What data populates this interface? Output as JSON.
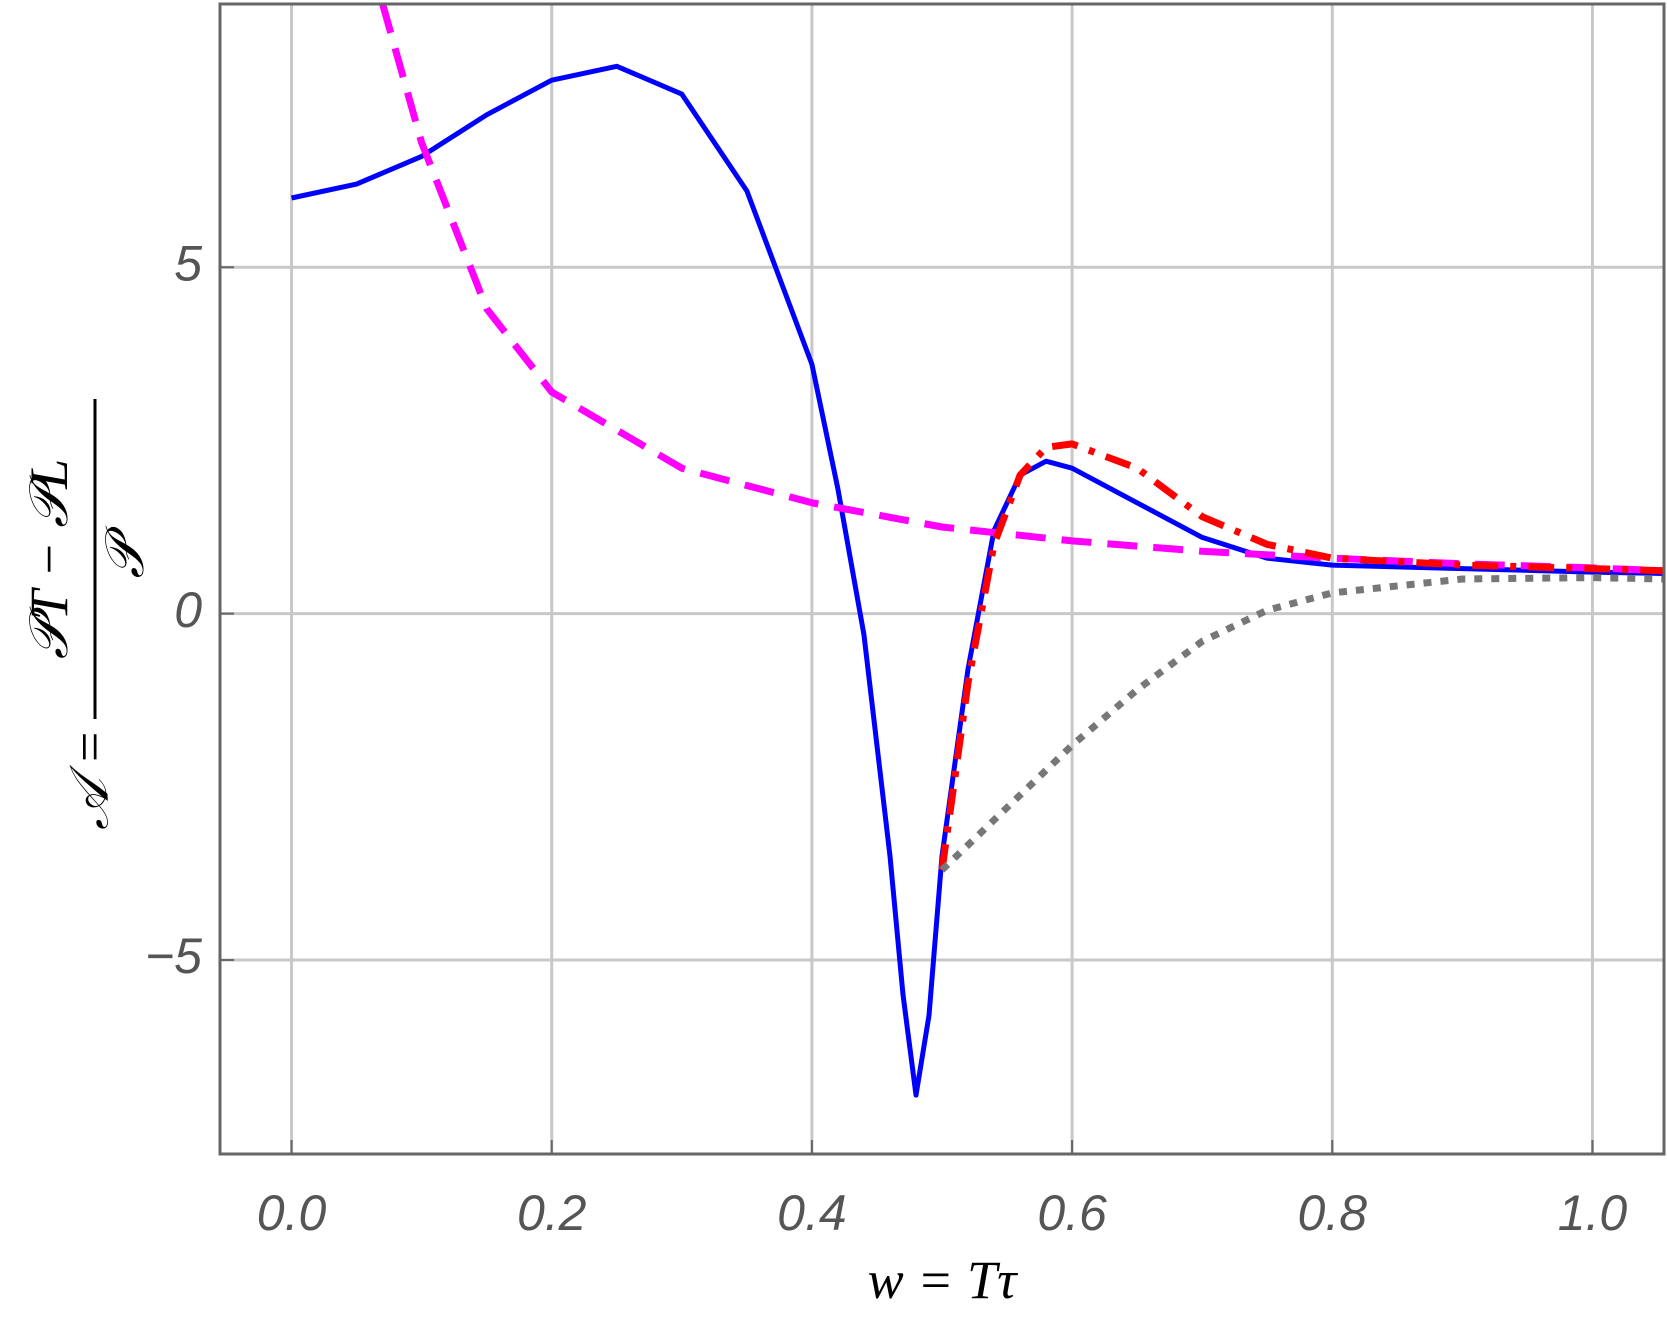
{
  "chart_data": {
    "type": "line",
    "xlabel": "w = Tτ",
    "ylabel_left": "𝒜 =",
    "ylabel_numerator": "𝒫T − 𝒫L",
    "ylabel_denominator": "𝒫",
    "xlim": [
      -0.055,
      1.055
    ],
    "ylim": [
      -7.8,
      8.8
    ],
    "xticks": [
      {
        "value": 0,
        "label": "0.0"
      },
      0.2,
      0.4,
      0.6,
      0.8,
      {
        "value": 1,
        "label": "1.0"
      }
    ],
    "yticks": [
      {
        "value": -5,
        "label": "−5"
      },
      0,
      5
    ],
    "grid": true,
    "series": [
      {
        "color": "#0000ff",
        "style": "solid",
        "x": [
          0,
          0.05,
          0.1,
          0.15,
          0.2,
          0.25,
          0.3,
          0.35,
          0.4,
          0.42,
          0.44,
          0.46,
          0.47,
          0.48,
          0.49,
          0.5,
          0.52,
          0.54,
          0.56,
          0.58,
          0.6,
          0.65,
          0.7,
          0.75,
          0.8,
          0.9,
          1.0,
          1.055
        ],
        "values": [
          6.0,
          6.2,
          6.6,
          7.2,
          7.7,
          7.9,
          7.5,
          6.1,
          3.6,
          1.8,
          -0.3,
          -3.5,
          -5.5,
          -6.95,
          -5.8,
          -3.5,
          -0.8,
          1.2,
          2.0,
          2.2,
          2.1,
          1.6,
          1.1,
          0.8,
          0.7,
          0.65,
          0.6,
          0.58
        ]
      },
      {
        "color": "#ff00ff",
        "style": "dashed",
        "x": [
          0.07,
          0.1,
          0.15,
          0.2,
          0.3,
          0.4,
          0.5,
          0.6,
          0.7,
          0.8,
          0.9,
          1.0,
          1.055
        ],
        "values": [
          8.8,
          6.8,
          4.4,
          3.2,
          2.1,
          1.6,
          1.25,
          1.05,
          0.9,
          0.8,
          0.72,
          0.66,
          0.62
        ]
      },
      {
        "color": "#ff0000",
        "style": "dashdot",
        "x": [
          0.5,
          0.52,
          0.54,
          0.56,
          0.58,
          0.6,
          0.65,
          0.7,
          0.75,
          0.8,
          0.9,
          1.0,
          1.055
        ],
        "values": [
          -3.7,
          -1.0,
          1.0,
          2.0,
          2.4,
          2.45,
          2.1,
          1.4,
          1.0,
          0.8,
          0.7,
          0.65,
          0.62
        ]
      },
      {
        "color": "#777777",
        "style": "dotted",
        "x": [
          0.5,
          0.55,
          0.6,
          0.65,
          0.7,
          0.75,
          0.8,
          0.9,
          1.0,
          1.055
        ],
        "values": [
          -3.7,
          -2.8,
          -1.9,
          -1.1,
          -0.4,
          0.05,
          0.3,
          0.5,
          0.52,
          0.5
        ]
      }
    ]
  }
}
